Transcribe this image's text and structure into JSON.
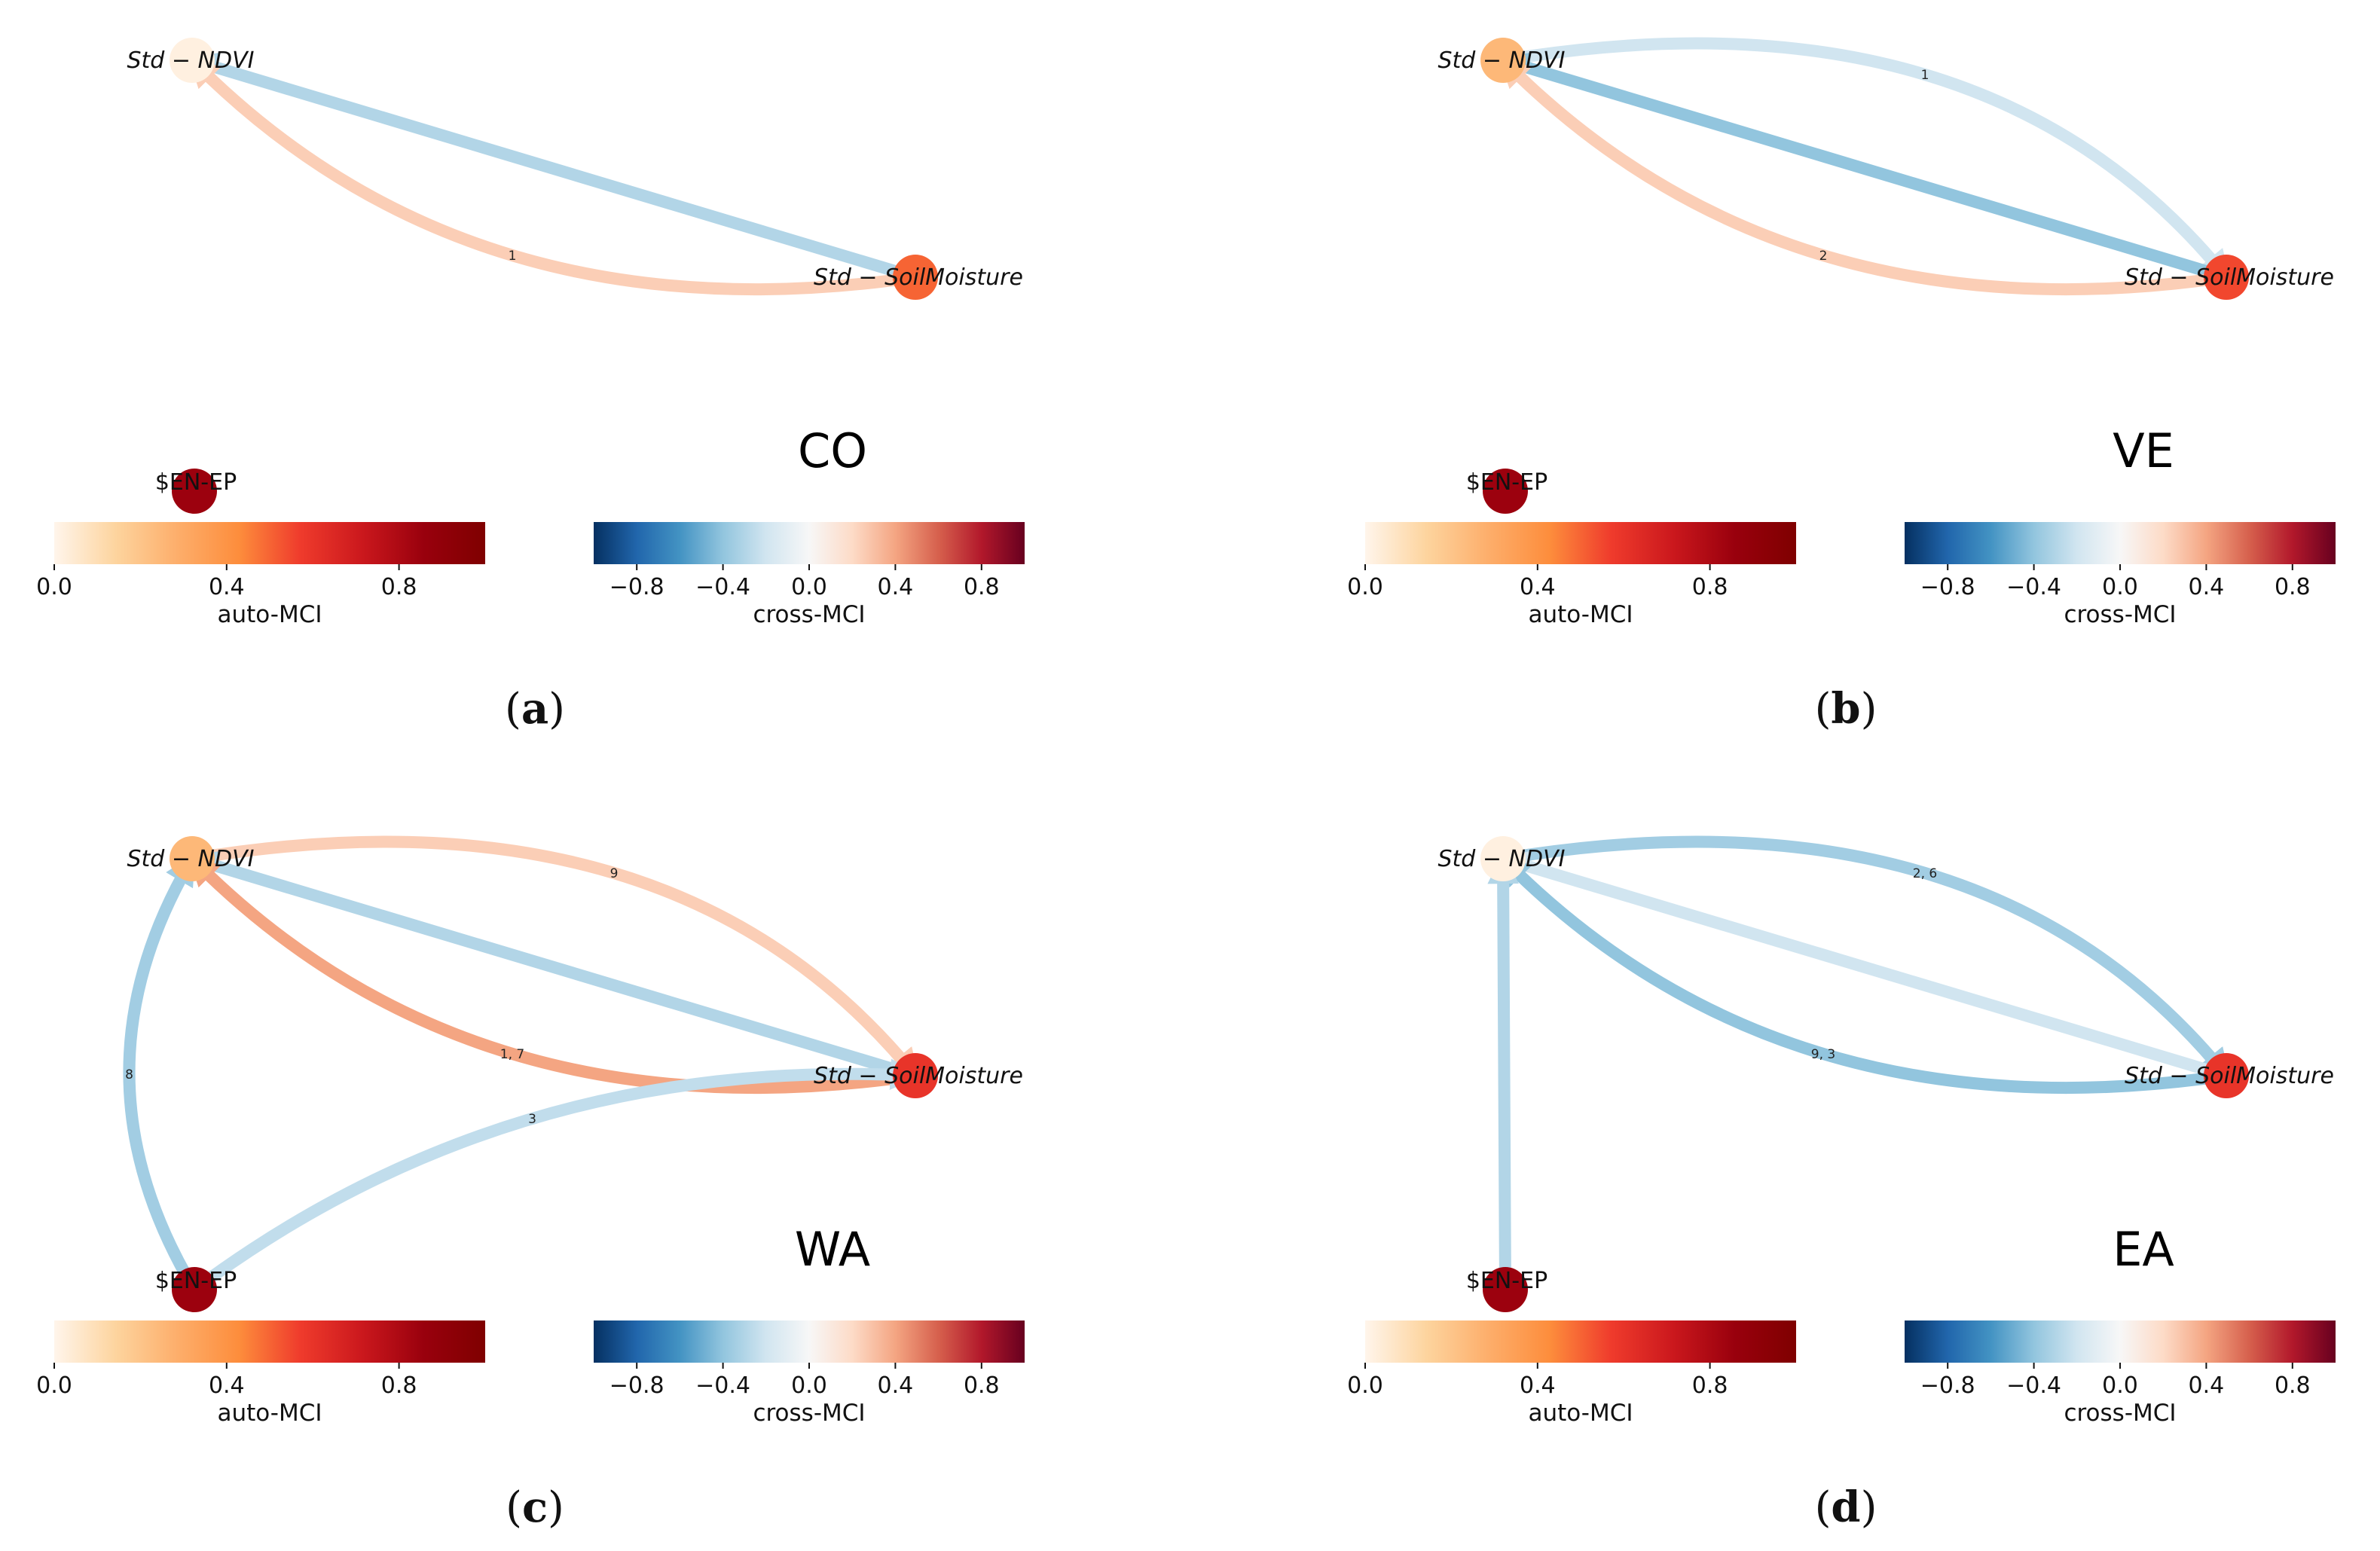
{
  "colors": {
    "auto_mci": [
      "#fff5eb",
      "#fdd49e",
      "#fdae6b",
      "#fd8d3c",
      "#ef3b2c",
      "#cb181d",
      "#99000d",
      "#7f0000"
    ],
    "cross_mci": [
      "#053061",
      "#2166ac",
      "#4393c3",
      "#92c5de",
      "#d1e5f0",
      "#f7f7f7",
      "#fddbc7",
      "#f4a582",
      "#d6604d",
      "#b2182b",
      "#67001f"
    ]
  },
  "chart_data": [
    {
      "type": "network",
      "panel": "(a)",
      "caption_letter": "a",
      "region": "CO",
      "nodes": [
        {
          "id": "ndvi",
          "label": "Std − NDVI",
          "auto_mci": 0.02
        },
        {
          "id": "soil",
          "label": "Std − SoilMoisture",
          "auto_mci": 0.5
        },
        {
          "id": "enep",
          "label": "$EN-EP",
          "auto_mci": 0.85
        }
      ],
      "edges": [
        {
          "from": "soil",
          "to": "ndvi",
          "curve": "straight",
          "cross_mci": -0.3,
          "lags": ""
        },
        {
          "from": "soil",
          "to": "ndvi",
          "curve": "arc",
          "cross_mci": 0.25,
          "lags": "1"
        }
      ],
      "colorbars": [
        {
          "title": "auto-MCI",
          "range": [
            0,
            1
          ],
          "ticks": [
            "0.0",
            "0.4",
            "0.8"
          ],
          "tick_values": [
            0,
            0.4,
            0.8
          ]
        },
        {
          "title": "cross-MCI",
          "range": [
            -1,
            1
          ],
          "ticks": [
            "−0.8",
            "−0.4",
            "0.0",
            "0.4",
            "0.8"
          ],
          "tick_values": [
            -0.8,
            -0.4,
            0,
            0.4,
            0.8
          ]
        }
      ]
    },
    {
      "type": "network",
      "panel": "(b)",
      "caption_letter": "b",
      "region": "VE",
      "nodes": [
        {
          "id": "ndvi",
          "label": "Std − NDVI",
          "auto_mci": 0.25
        },
        {
          "id": "soil",
          "label": "Std − SoilMoisture",
          "auto_mci": 0.55
        },
        {
          "id": "enep",
          "label": "$EN-EP",
          "auto_mci": 0.85
        }
      ],
      "edges": [
        {
          "from": "ndvi",
          "to": "soil",
          "curve": "arc-up",
          "cross_mci": -0.2,
          "lags": "1"
        },
        {
          "from": "soil",
          "to": "ndvi",
          "curve": "straight",
          "cross_mci": -0.4,
          "lags": ""
        },
        {
          "from": "soil",
          "to": "ndvi",
          "curve": "arc",
          "cross_mci": 0.25,
          "lags": "2"
        }
      ],
      "colorbars": [
        {
          "title": "auto-MCI",
          "range": [
            0,
            1
          ],
          "ticks": [
            "0.0",
            "0.4",
            "0.8"
          ],
          "tick_values": [
            0,
            0.4,
            0.8
          ]
        },
        {
          "title": "cross-MCI",
          "range": [
            -1,
            1
          ],
          "ticks": [
            "−0.8",
            "−0.4",
            "0.0",
            "0.4",
            "0.8"
          ],
          "tick_values": [
            -0.8,
            -0.4,
            0,
            0.4,
            0.8
          ]
        }
      ]
    },
    {
      "type": "network",
      "panel": "(c)",
      "caption_letter": "c",
      "region": "WA",
      "nodes": [
        {
          "id": "ndvi",
          "label": "Std − NDVI",
          "auto_mci": 0.25
        },
        {
          "id": "soil",
          "label": "Std − SoilMoisture",
          "auto_mci": 0.6
        },
        {
          "id": "enep",
          "label": "$EN-EP",
          "auto_mci": 0.85
        }
      ],
      "edges": [
        {
          "from": "ndvi",
          "to": "soil",
          "curve": "arc-up",
          "cross_mci": 0.25,
          "lags": "9"
        },
        {
          "from": "soil",
          "to": "ndvi",
          "curve": "straight",
          "cross_mci": -0.3,
          "lags": ""
        },
        {
          "from": "soil",
          "to": "ndvi",
          "curve": "arc",
          "cross_mci": 0.4,
          "lags": "1, 7"
        },
        {
          "from": "enep",
          "to": "soil",
          "curve": "arc",
          "cross_mci": -0.25,
          "lags": "3"
        },
        {
          "from": "enep",
          "to": "ndvi",
          "curve": "arc-left",
          "cross_mci": -0.35,
          "lags": "8"
        }
      ],
      "colorbars": [
        {
          "title": "auto-MCI",
          "range": [
            0,
            1
          ],
          "ticks": [
            "0.0",
            "0.4",
            "0.8"
          ],
          "tick_values": [
            0,
            0.4,
            0.8
          ]
        },
        {
          "title": "cross-MCI",
          "range": [
            -1,
            1
          ],
          "ticks": [
            "−0.8",
            "−0.4",
            "0.0",
            "0.4",
            "0.8"
          ],
          "tick_values": [
            -0.8,
            -0.4,
            0,
            0.4,
            0.8
          ]
        }
      ]
    },
    {
      "type": "network",
      "panel": "(d)",
      "caption_letter": "d",
      "region": "EA",
      "nodes": [
        {
          "id": "ndvi",
          "label": "Std − NDVI",
          "auto_mci": 0.02
        },
        {
          "id": "soil",
          "label": "Std − SoilMoisture",
          "auto_mci": 0.6
        },
        {
          "id": "enep",
          "label": "$EN-EP",
          "auto_mci": 0.85
        }
      ],
      "edges": [
        {
          "from": "ndvi",
          "to": "soil",
          "curve": "arc-up",
          "cross_mci": -0.35,
          "lags": "2, 6"
        },
        {
          "from": "soil",
          "to": "ndvi",
          "curve": "straight",
          "cross_mci": -0.2,
          "lags": ""
        },
        {
          "from": "soil",
          "to": "ndvi",
          "curve": "arc",
          "cross_mci": -0.4,
          "lags": "9, 3"
        },
        {
          "from": "enep",
          "to": "ndvi",
          "curve": "straight",
          "cross_mci": -0.3,
          "lags": ""
        }
      ],
      "colorbars": [
        {
          "title": "auto-MCI",
          "range": [
            0,
            1
          ],
          "ticks": [
            "0.0",
            "0.4",
            "0.8"
          ],
          "tick_values": [
            0,
            0.4,
            0.8
          ]
        },
        {
          "title": "cross-MCI",
          "range": [
            -1,
            1
          ],
          "ticks": [
            "−0.8",
            "−0.4",
            "0.0",
            "0.4",
            "0.8"
          ],
          "tick_values": [
            -0.8,
            -0.4,
            0,
            0.4,
            0.8
          ]
        }
      ]
    }
  ]
}
